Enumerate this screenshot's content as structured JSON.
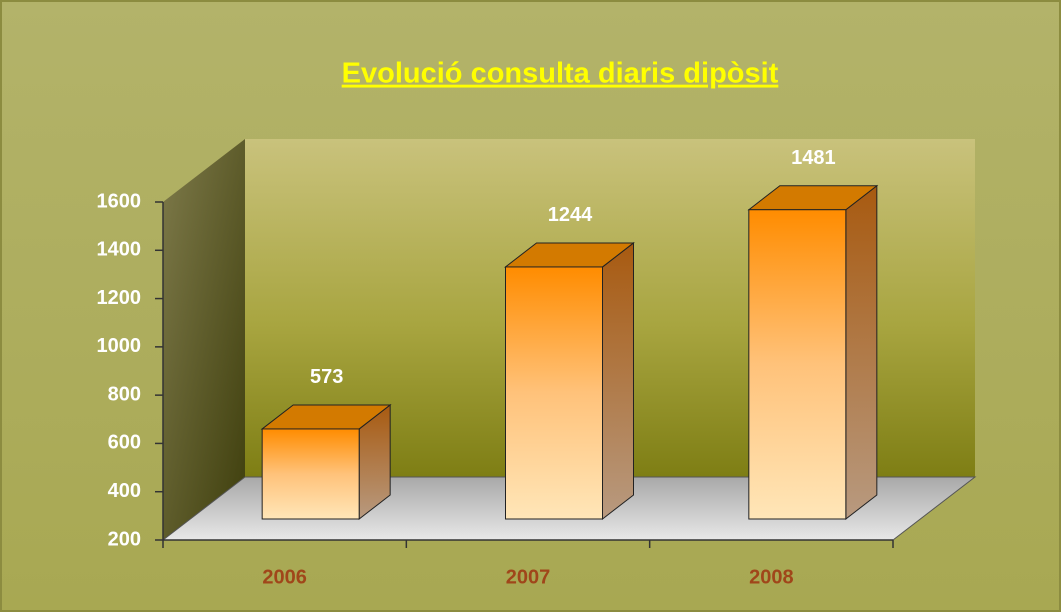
{
  "chart_data": {
    "type": "bar3d",
    "title": "Evolució consulta diaris dipòsit",
    "categories": [
      "2006",
      "2007",
      "2008"
    ],
    "values": [
      573,
      1244,
      1481
    ],
    "color": "#ff9900",
    "ylim": [
      200,
      1600
    ],
    "yticks": [
      200,
      400,
      600,
      800,
      1000,
      1200,
      1400,
      1600
    ],
    "grid": false
  }
}
